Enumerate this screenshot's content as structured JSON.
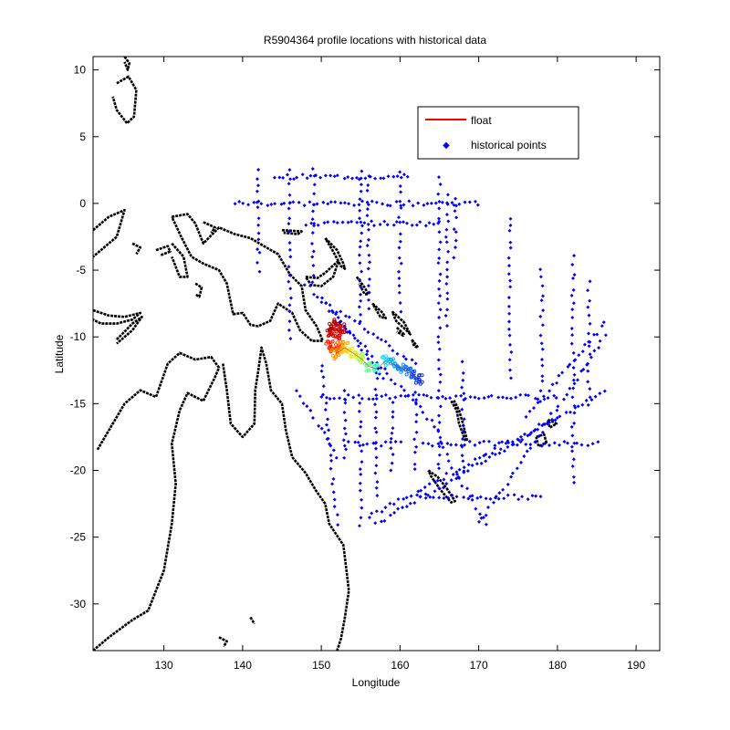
{
  "chart_data": {
    "type": "scatter",
    "title": "R5904364 profile locations with historical data",
    "xlabel": "Longitude",
    "ylabel": "Latitude",
    "xlim": [
      121,
      193
    ],
    "ylim": [
      -33.5,
      11
    ],
    "xticks": [
      130,
      140,
      150,
      160,
      170,
      180,
      190
    ],
    "yticks": [
      10,
      5,
      0,
      -5,
      -10,
      -15,
      -20,
      -25,
      -30
    ],
    "grid": false,
    "legend_position": "top-right",
    "colors": {
      "float": "#ff0000",
      "historical": "#0000ff",
      "coast": "#000000"
    },
    "legend": {
      "float": "float",
      "historical": "historical points"
    },
    "series": [
      {
        "name": "float",
        "description_points": [
          {
            "x": 151.5,
            "y": -9.2,
            "color": "#a00000"
          },
          {
            "x": 152.0,
            "y": -9.0,
            "color": "#b00000"
          },
          {
            "x": 152.5,
            "y": -9.3,
            "color": "#c00000"
          },
          {
            "x": 151.2,
            "y": -9.6,
            "color": "#c80000"
          },
          {
            "x": 152.2,
            "y": -9.8,
            "color": "#d80000"
          },
          {
            "x": 151.0,
            "y": -10.6,
            "color": "#ff2000"
          },
          {
            "x": 151.6,
            "y": -10.9,
            "color": "#ff4a00"
          },
          {
            "x": 152.4,
            "y": -10.6,
            "color": "#ff7000"
          },
          {
            "x": 151.8,
            "y": -11.3,
            "color": "#ff9a00"
          },
          {
            "x": 153.0,
            "y": -10.8,
            "color": "#ffc000"
          },
          {
            "x": 154.0,
            "y": -11.2,
            "color": "#e0f000"
          },
          {
            "x": 155.0,
            "y": -11.6,
            "color": "#a0ff40"
          },
          {
            "x": 156.0,
            "y": -12.2,
            "color": "#60ff90"
          },
          {
            "x": 157.0,
            "y": -12.4,
            "color": "#40ffc0"
          },
          {
            "x": 158.2,
            "y": -11.8,
            "color": "#20e0ff"
          },
          {
            "x": 159.0,
            "y": -12.0,
            "color": "#00b0ff"
          },
          {
            "x": 160.0,
            "y": -12.3,
            "color": "#0090ff"
          },
          {
            "x": 161.0,
            "y": -12.5,
            "color": "#0070ff"
          },
          {
            "x": 161.8,
            "y": -12.9,
            "color": "#0050ff"
          },
          {
            "x": 162.4,
            "y": -13.2,
            "color": "#0030e0"
          }
        ]
      },
      {
        "name": "historical points",
        "tracks": [
          {
            "from": [
              142,
              2.5
            ],
            "to": [
              142,
              -5
            ]
          },
          {
            "from": [
              146,
              2.5
            ],
            "to": [
              146,
              -10
            ]
          },
          {
            "from": [
              149,
              2.5
            ],
            "to": [
              149,
              -6
            ]
          },
          {
            "from": [
              155,
              2.5
            ],
            "to": [
              155,
              -9
            ]
          },
          {
            "from": [
              156,
              2.0
            ],
            "to": [
              156,
              -8
            ]
          },
          {
            "from": [
              160,
              2.5
            ],
            "to": [
              160,
              -8
            ]
          },
          {
            "from": [
              165,
              2.0
            ],
            "to": [
              165,
              -20
            ]
          },
          {
            "from": [
              166,
              0.5
            ],
            "to": [
              166,
              -9
            ]
          },
          {
            "from": [
              167,
              0.5
            ],
            "to": [
              167,
              -4
            ]
          },
          {
            "from": [
              174,
              -1
            ],
            "to": [
              174,
              -13
            ]
          },
          {
            "from": [
              139,
              0
            ],
            "to": [
              170,
              0
            ]
          },
          {
            "from": [
              144,
              2
            ],
            "to": [
              161,
              2
            ]
          },
          {
            "from": [
              148,
              -1.5
            ],
            "to": [
              165,
              -1.5
            ]
          },
          {
            "from": [
              150,
              -14.5
            ],
            "to": [
              180,
              -14.5
            ]
          },
          {
            "from": [
              163,
              -18
            ],
            "to": [
              185,
              -18
            ]
          },
          {
            "from": [
              153,
              -18
            ],
            "to": [
              160,
              -18
            ]
          },
          {
            "from": [
              182,
              -4
            ],
            "to": [
              182,
              -21
            ]
          },
          {
            "from": [
              184,
              -6
            ],
            "to": [
              184,
              -15
            ]
          },
          {
            "from": [
              178,
              -5
            ],
            "to": [
              178,
              -14
            ]
          },
          {
            "from": [
              150,
              -7
            ],
            "to": [
              158,
              -13
            ]
          },
          {
            "from": [
              152,
              -8
            ],
            "to": [
              162,
              -12
            ]
          },
          {
            "from": [
              148,
              -6
            ],
            "to": [
              165,
              -17
            ]
          },
          {
            "from": [
              156,
              -23.5
            ],
            "to": [
              180,
              -16
            ]
          },
          {
            "from": [
              157,
              -24
            ],
            "to": [
              186,
              -14
            ]
          },
          {
            "from": [
              162,
              -22
            ],
            "to": [
              178,
              -22
            ]
          },
          {
            "from": [
              170,
              -24
            ],
            "to": [
              186,
              -10
            ]
          },
          {
            "from": [
              176,
              -16
            ],
            "to": [
              186,
              -9
            ]
          },
          {
            "from": [
              155,
              -15
            ],
            "to": [
              155,
              -24
            ]
          },
          {
            "from": [
              150,
              -12
            ],
            "to": [
              152,
              -24
            ]
          },
          {
            "from": [
              147,
              -14
            ],
            "to": [
              152,
              -19
            ]
          },
          {
            "from": [
              162,
              -14
            ],
            "to": [
              162,
              -20
            ]
          },
          {
            "from": [
              168,
              -12
            ],
            "to": [
              168,
              -20
            ]
          },
          {
            "from": [
              165,
              -18
            ],
            "to": [
              171,
              -24
            ]
          },
          {
            "from": [
              153,
              -14
            ],
            "to": [
              153,
              -19
            ]
          },
          {
            "from": [
              157,
              -12
            ],
            "to": [
              157,
              -22
            ]
          },
          {
            "from": [
              159,
              -15
            ],
            "to": [
              159,
              -20
            ]
          }
        ]
      }
    ]
  }
}
